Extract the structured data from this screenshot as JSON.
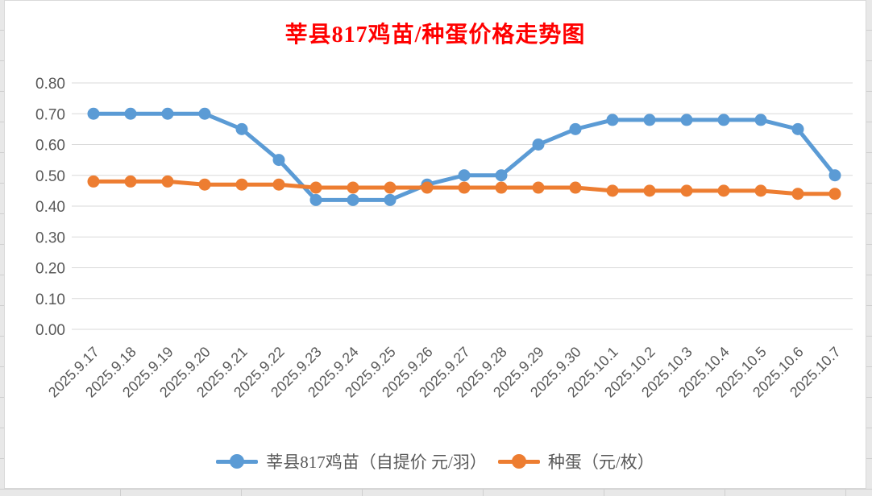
{
  "chart_data": {
    "type": "line",
    "title": "莘县817鸡苗/种蛋价格走势图",
    "title_color": "#FF0000",
    "categories": [
      "2025.9.17",
      "2025.9.18",
      "2025.9.19",
      "2025.9.20",
      "2025.9.21",
      "2025.9.22",
      "2025.9.23",
      "2025.9.24",
      "2025.9.25",
      "2025.9.26",
      "2025.9.27",
      "2025.9.28",
      "2025.9.29",
      "2025.9.30",
      "2025.10.1",
      "2025.10.2",
      "2025.10.3",
      "2025.10.4",
      "2025.10.5",
      "2025.10.6",
      "2025.10.7"
    ],
    "series": [
      {
        "name": "莘县817鸡苗（自提价 元/羽）",
        "color": "#5B9BD5",
        "values": [
          0.7,
          0.7,
          0.7,
          0.7,
          0.65,
          0.55,
          0.42,
          0.42,
          0.42,
          0.47,
          0.5,
          0.5,
          0.6,
          0.65,
          0.68,
          0.68,
          0.68,
          0.68,
          0.68,
          0.65,
          0.5
        ]
      },
      {
        "name": "种蛋（元/枚）",
        "color": "#ED7D31",
        "values": [
          0.48,
          0.48,
          0.48,
          0.47,
          0.47,
          0.47,
          0.46,
          0.46,
          0.46,
          0.46,
          0.46,
          0.46,
          0.46,
          0.46,
          0.45,
          0.45,
          0.45,
          0.45,
          0.45,
          0.44,
          0.44
        ]
      }
    ],
    "ylim": [
      0.0,
      0.8
    ],
    "y_tick_step": 0.1,
    "y_ticks": [
      "0.00",
      "0.10",
      "0.20",
      "0.30",
      "0.40",
      "0.50",
      "0.60",
      "0.70",
      "0.80"
    ],
    "xlabel": "",
    "ylabel": "",
    "grid": true,
    "legend_position": "bottom",
    "colors": {
      "axis_text": "#595959",
      "gridline": "#D9D9D9",
      "plot_background": "#FFFFFF"
    }
  }
}
